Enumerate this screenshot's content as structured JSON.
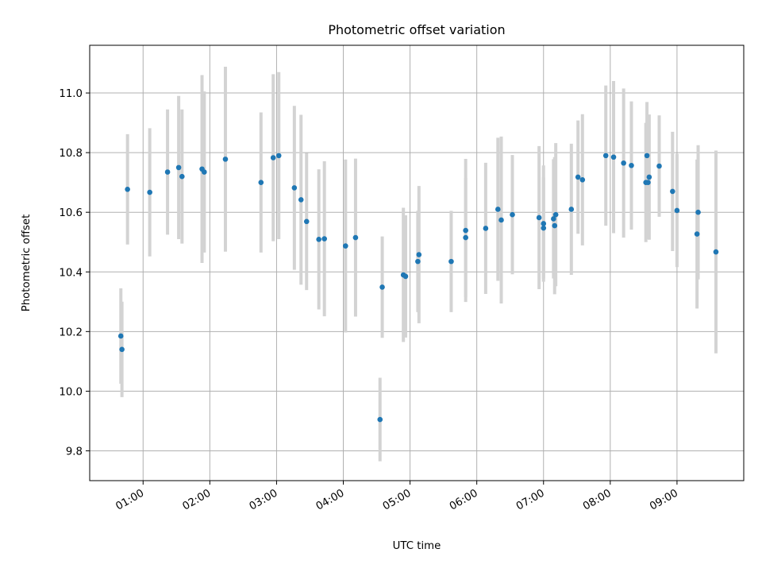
{
  "chart_data": {
    "type": "scatter",
    "title": "Photometric offset variation",
    "xlabel": "UTC time",
    "ylabel": "Photometric offset",
    "x_ticks": [
      "01:00",
      "02:00",
      "03:00",
      "04:00",
      "05:00",
      "06:00",
      "07:00",
      "08:00",
      "09:00"
    ],
    "y_ticks": [
      "9.8",
      "10.0",
      "10.2",
      "10.4",
      "10.6",
      "10.8",
      "11.0"
    ],
    "xlim": [
      "00:12",
      "10:00"
    ],
    "ylim": [
      9.7,
      11.16
    ],
    "grid": true,
    "colors": {
      "point": "#1f77b4",
      "errorbar": "#d3d3d3",
      "grid": "#b0b0b0"
    },
    "series": [
      {
        "x": [
          "00:40",
          "00:41",
          "00:46",
          "01:06",
          "01:22",
          "01:32",
          "01:35",
          "01:53",
          "01:55",
          "02:14",
          "02:46",
          "02:57",
          "03:02",
          "03:16",
          "03:22",
          "03:27",
          "03:38",
          "03:43",
          "04:02",
          "04:11",
          "04:33",
          "04:35",
          "04:54",
          "04:56",
          "05:07",
          "05:08",
          "05:37",
          "05:50",
          "05:50",
          "06:08",
          "06:19",
          "06:22",
          "06:32",
          "06:56",
          "07:00",
          "07:00",
          "07:09",
          "07:10",
          "07:11",
          "07:25",
          "07:31",
          "07:35",
          "07:56",
          "08:03",
          "08:12",
          "08:19",
          "08:32",
          "08:33",
          "08:34",
          "08:35",
          "08:44",
          "08:56",
          "09:00",
          "09:18",
          "09:19",
          "09:35"
        ],
        "y": [
          10.185,
          10.14,
          10.677,
          10.667,
          10.735,
          10.75,
          10.72,
          10.745,
          10.735,
          10.778,
          10.7,
          10.783,
          10.79,
          10.682,
          10.642,
          10.569,
          10.509,
          10.511,
          10.487,
          10.515,
          9.905,
          10.349,
          10.39,
          10.385,
          10.435,
          10.458,
          10.435,
          10.515,
          10.539,
          10.546,
          10.61,
          10.574,
          10.592,
          10.582,
          10.562,
          10.547,
          10.578,
          10.555,
          10.592,
          10.61,
          10.718,
          10.709,
          10.79,
          10.785,
          10.765,
          10.757,
          10.7,
          10.79,
          10.7,
          10.718,
          10.755,
          10.67,
          10.606,
          10.527,
          10.6,
          10.467
        ],
        "err": [
          0.16,
          0.16,
          0.185,
          0.215,
          0.21,
          0.24,
          0.225,
          0.315,
          0.27,
          0.31,
          0.235,
          0.28,
          0.28,
          0.275,
          0.285,
          0.23,
          0.235,
          0.26,
          0.29,
          0.265,
          0.14,
          0.17,
          0.225,
          0.205,
          0.17,
          0.23,
          0.17,
          0.2,
          0.24,
          0.22,
          0.24,
          0.28,
          0.2,
          0.24,
          0.195,
          0.17,
          0.2,
          0.23,
          0.24,
          0.22,
          0.19,
          0.22,
          0.235,
          0.255,
          0.25,
          0.215,
          0.2,
          0.18,
          0.19,
          0.21,
          0.17,
          0.2,
          0.19,
          0.25,
          0.225,
          0.34
        ]
      }
    ]
  }
}
